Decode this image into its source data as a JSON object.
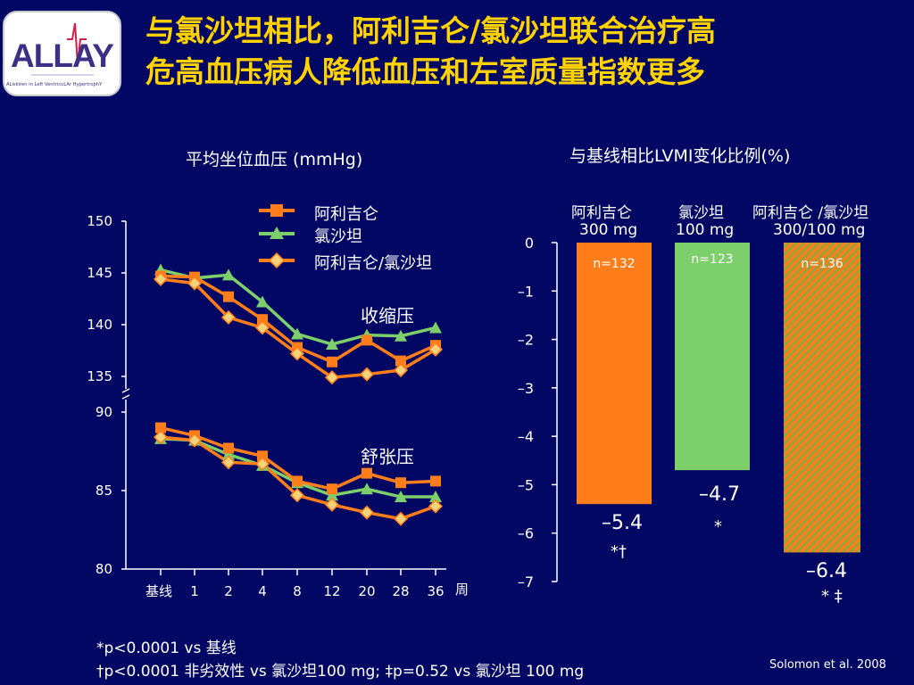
{
  "logo": {
    "text": "ALLAY",
    "subtitle": "ALiskiren in Left VentricuLAr HypertrophY"
  },
  "title": {
    "line1": "与氯沙坦相比，阿利吉仑/氯沙坦联合治疗高",
    "line2": "危高血压病人降低血压和左室质量指数更多"
  },
  "colors": {
    "background": "#020764",
    "title": "#ffd200",
    "aliskiren": "#ff7d1a",
    "losartan": "#7ccf6b",
    "combo_stripe_a": "#ff7d1a",
    "combo_stripe_b": "#8aa83b"
  },
  "chart_data": [
    {
      "type": "line",
      "title": "平均坐位血压 (mmHg)",
      "x_label": "周",
      "categories": [
        "基线",
        "1",
        "2",
        "4",
        "8",
        "12",
        "20",
        "28",
        "36"
      ],
      "legend": [
        "阿利吉仑",
        "氯沙坦",
        "阿利吉仑/氯沙坦"
      ],
      "legend_placement": "top",
      "axis_break": true,
      "panels": [
        {
          "label": "收缩压",
          "ylim": [
            135,
            150
          ],
          "yticks": [
            "150",
            "145",
            "140",
            "135"
          ],
          "series": [
            {
              "name": "阿利吉仑",
              "values": [
                144.7,
                144.6,
                142.7,
                140.5,
                137.8,
                136.4,
                138.5,
                136.5,
                138.0
              ]
            },
            {
              "name": "氯沙坦",
              "values": [
                145.3,
                144.5,
                144.8,
                142.2,
                139.1,
                138.1,
                139.0,
                138.9,
                139.7
              ]
            },
            {
              "name": "阿利吉仑/氯沙坦",
              "values": [
                144.4,
                144.0,
                140.7,
                139.7,
                137.2,
                134.9,
                135.2,
                135.6,
                137.6
              ]
            }
          ]
        },
        {
          "label": "舒张压",
          "ylim": [
            80,
            90
          ],
          "yticks": [
            "90",
            "85",
            "80"
          ],
          "series": [
            {
              "name": "阿利吉仑",
              "values": [
                89.0,
                88.5,
                87.7,
                87.2,
                85.6,
                85.1,
                86.1,
                85.5,
                85.6
              ]
            },
            {
              "name": "氯沙坦",
              "values": [
                88.3,
                88.2,
                87.3,
                86.6,
                85.5,
                84.7,
                85.1,
                84.6,
                84.6
              ]
            },
            {
              "name": "阿利吉仑/氯沙坦",
              "values": [
                88.4,
                88.2,
                86.8,
                86.7,
                84.7,
                84.1,
                83.6,
                83.2,
                84.0
              ]
            }
          ]
        }
      ]
    },
    {
      "type": "bar",
      "title": "与基线相比LVMI变化比例(%)",
      "ylim": [
        -7,
        0
      ],
      "yticks": [
        "0",
        "–1",
        "–2",
        "–3",
        "–4",
        "–5",
        "–6",
        "–7"
      ],
      "bars": [
        {
          "label": "阿利吉仑",
          "dose": "300 mg",
          "n": "n=132",
          "value": -5.4,
          "value_label": "–5.4",
          "sig": "*†",
          "color": "#ff7d1a"
        },
        {
          "label": "氯沙坦",
          "dose": "100 mg",
          "n": "n=123",
          "value": -4.7,
          "value_label": "–4.7",
          "sig": "*",
          "color": "#7ccf6b"
        },
        {
          "label": "阿利吉仑 /氯沙坦",
          "dose": "300/100 mg",
          "n": "n=136",
          "value": -6.4,
          "value_label": "–6.4",
          "sig": "* ‡",
          "color": "striped"
        }
      ]
    }
  ],
  "footnotes": {
    "line1": "*p<0.0001 vs 基线",
    "line2": "†p<0.0001 非劣效性 vs 氯沙坦100 mg; ‡p=0.52 vs 氯沙坦 100 mg",
    "source": "Solomon et al. 2008"
  }
}
